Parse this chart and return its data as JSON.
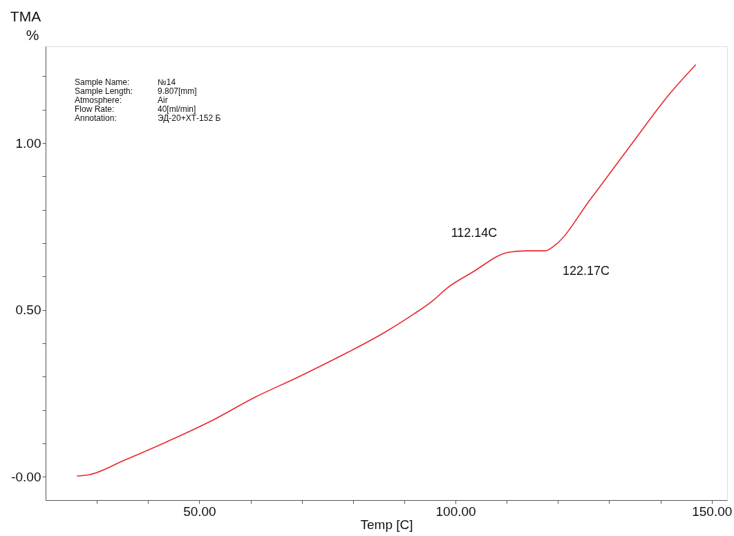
{
  "chart_data": {
    "type": "line",
    "title": "TMA",
    "ylabel": "%",
    "xlabel": "Temp  [C]",
    "x": [
      26.1,
      28.5,
      35.3,
      43.7,
      52.3,
      60.7,
      69.2,
      77.6,
      86.1,
      91.7,
      95.6,
      98.4,
      103.1,
      110.5,
      114,
      117.5,
      119.5,
      126.4,
      134.7,
      141.5,
      146.9
    ],
    "series": [
      {
        "color": "#e8262b",
        "values": [
          0.002,
          0.006,
          0.049,
          0.105,
          0.167,
          0.237,
          0.298,
          0.362,
          0.432,
          0.486,
          0.528,
          0.566,
          0.611,
          0.673,
          0.677,
          0.677,
          0.695,
          0.833,
          1.004,
          1.142,
          1.235
        ]
      }
    ],
    "xlim": [
      20,
      153
    ],
    "ylim": [
      -0.07,
      1.29
    ],
    "xticks": [
      {
        "value": 30,
        "label": null
      },
      {
        "value": 40,
        "label": null
      },
      {
        "value": 50,
        "label": "50.00"
      },
      {
        "value": 60,
        "label": null
      },
      {
        "value": 70,
        "label": null
      },
      {
        "value": 80,
        "label": null
      },
      {
        "value": 90,
        "label": null
      },
      {
        "value": 100,
        "label": "100.00"
      },
      {
        "value": 110,
        "label": null
      },
      {
        "value": 120,
        "label": null
      },
      {
        "value": 130,
        "label": null
      },
      {
        "value": 140,
        "label": null
      },
      {
        "value": 150,
        "label": "150.00"
      }
    ],
    "yticks": [
      {
        "value": 0,
        "label": "-0.00"
      },
      {
        "value": 0.1,
        "label": null
      },
      {
        "value": 0.2,
        "label": null
      },
      {
        "value": 0.3,
        "label": null
      },
      {
        "value": 0.4,
        "label": null
      },
      {
        "value": 0.5,
        "label": "0.50"
      },
      {
        "value": 0.6,
        "label": null
      },
      {
        "value": 0.7,
        "label": null
      },
      {
        "value": 0.8,
        "label": null
      },
      {
        "value": 0.9,
        "label": null
      },
      {
        "value": 1.0,
        "label": "1.00"
      },
      {
        "value": 1.1,
        "label": null
      },
      {
        "value": 1.2,
        "label": null
      }
    ],
    "annotations": [
      "Sample Name:",
      "№14",
      "Sample Length:",
      "9.807[mm]",
      "Atmosphere:",
      "Air",
      "Flow Rate:",
      "40[ml/min]",
      "Annotation:",
      "ЭД-20+ХТ-152 Б",
      "112.14C",
      "122.17C"
    ],
    "grid": false,
    "marker": "none",
    "line_style": "solid"
  }
}
